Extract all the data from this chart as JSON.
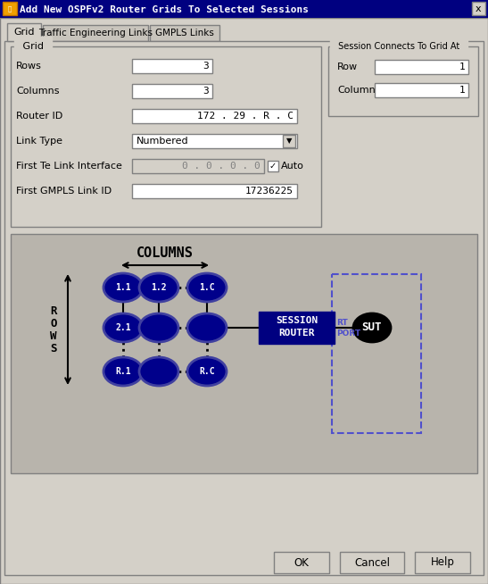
{
  "title": "Add New OSPFv2 Router Grids To Selected Sessions",
  "window_bg": "#d4d0c8",
  "title_bar_color": "#000080",
  "tab_bg": "#d4d0c8",
  "tab_inactive": "#c8c4bc",
  "groupbox_bg": "#d4d0c8",
  "input_bg": "#ffffff",
  "grayed_bg": "#d4d0c8",
  "diagram_bg": "#b8b4ac",
  "router_color": "#00008b",
  "router_outline": "#4040a0",
  "sut_color": "#000000",
  "session_box_color": "#000080",
  "dashed_color": "#5050cc",
  "button_bg": "#d4d0c8",
  "field_rows": [
    {
      "label": "Rows",
      "value": "3",
      "type": "input"
    },
    {
      "label": "Columns",
      "value": "3",
      "type": "input"
    },
    {
      "label": "Router ID",
      "value": "172 . 29 . R . C",
      "type": "input_wide"
    },
    {
      "label": "Link Type",
      "value": "Numbered",
      "type": "dropdown"
    },
    {
      "label": "First Te Link Interface",
      "value": "0 . 0 . 0 . 0",
      "type": "grayed",
      "extra": "Auto"
    },
    {
      "label": "First GMPLS Link ID",
      "value": "17236225",
      "type": "input_wide"
    }
  ],
  "session_fields": [
    {
      "label": "Row",
      "value": "1"
    },
    {
      "label": "Column",
      "value": "1"
    }
  ],
  "node_labels": [
    "1.1",
    "1.2",
    "1.C",
    "2.1",
    "",
    "",
    "R.1",
    "",
    "R.C"
  ],
  "buttons": [
    "OK",
    "Cancel",
    "Help"
  ]
}
